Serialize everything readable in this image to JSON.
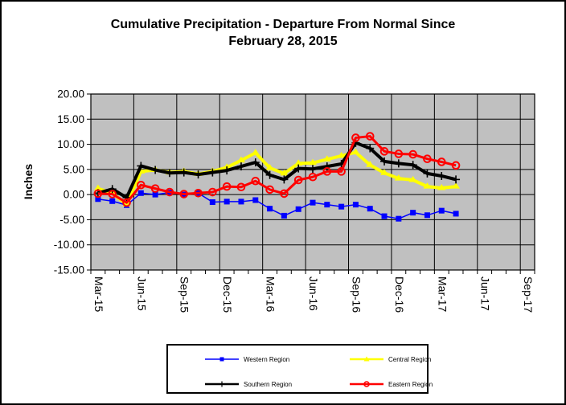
{
  "chart_data": {
    "type": "line",
    "title": "Cumulative Precipitation - Departure From Normal Since February 28, 2015",
    "title_lines": [
      "Cumulative Precipitation - Departure From Normal Since",
      "February 28, 2015"
    ],
    "ylabel": "Inches",
    "xlabel": "",
    "ylim": [
      -15,
      20
    ],
    "ytick_step": 5,
    "ytick_labels": [
      "20.00",
      "15.00",
      "10.00",
      "5.00",
      "0.00",
      "-5.00",
      "-10.00",
      "-15.00"
    ],
    "categories": [
      "Mar-15",
      "Apr-15",
      "May-15",
      "Jun-15",
      "Jul-15",
      "Aug-15",
      "Sep-15",
      "Oct-15",
      "Nov-15",
      "Dec-15",
      "Jan-16",
      "Feb-16",
      "Mar-16",
      "Apr-16",
      "May-16",
      "Jun-16",
      "Jul-16",
      "Aug-16",
      "Sep-16",
      "Oct-16",
      "Nov-16",
      "Dec-16",
      "Jan-17",
      "Feb-17",
      "Mar-17",
      "Apr-17",
      "May-17",
      "Jun-17",
      "Jul-17",
      "Aug-17",
      "Sep-17"
    ],
    "x_tick_labels": [
      "Mar-15",
      "Jun-15",
      "Sep-15",
      "Dec-15",
      "Mar-16",
      "Jun-16",
      "Sep-16",
      "Dec-16",
      "Mar-17",
      "Jun-17",
      "Sep-17"
    ],
    "x_tick_every": 3,
    "grid": true,
    "plot_bg_color": "#C0C0C0",
    "gridline_color": "#000000",
    "legend_position": "bottom",
    "series": [
      {
        "name": "Western Region",
        "color": "#0000FF",
        "marker": "square",
        "line_width": 1.5,
        "values": [
          -0.9,
          -1.3,
          -2.1,
          0.3,
          0.0,
          0.4,
          0.0,
          0.3,
          -1.5,
          -1.4,
          -1.4,
          -1.1,
          -2.8,
          -4.2,
          -2.9,
          -1.6,
          -2.0,
          -2.4,
          -2.0,
          -2.8,
          -4.3,
          -4.8,
          -3.6,
          -4.1,
          -3.2,
          -3.8
        ]
      },
      {
        "name": "Central Region",
        "color": "#FFFF00",
        "marker": "triangle",
        "line_width": 4,
        "values": [
          1.2,
          0.3,
          -2.0,
          4.6,
          4.9,
          4.4,
          4.6,
          4.1,
          4.6,
          5.4,
          6.8,
          8.3,
          5.3,
          4.2,
          6.2,
          6.3,
          7.0,
          7.7,
          8.4,
          5.9,
          4.3,
          3.2,
          2.9,
          1.6,
          1.3,
          1.6
        ]
      },
      {
        "name": "Southern Region",
        "color": "#000000",
        "marker": "plus",
        "line_width": 4,
        "values": [
          0.3,
          1.1,
          -0.6,
          5.7,
          4.9,
          4.3,
          4.4,
          4.0,
          4.4,
          4.8,
          5.6,
          6.4,
          3.9,
          3.0,
          5.2,
          5.1,
          5.6,
          6.1,
          10.3,
          9.2,
          6.6,
          6.2,
          5.9,
          4.2,
          3.7,
          3.0
        ]
      },
      {
        "name": "Eastern Region",
        "color": "#FF0000",
        "marker": "circle",
        "line_width": 3,
        "values": [
          0.2,
          0.1,
          -1.6,
          1.9,
          1.2,
          0.5,
          0.1,
          0.3,
          0.5,
          1.6,
          1.5,
          2.7,
          1.0,
          0.2,
          2.9,
          3.5,
          4.6,
          4.6,
          11.3,
          11.6,
          8.6,
          8.1,
          8.0,
          7.1,
          6.5,
          5.8
        ]
      }
    ]
  }
}
